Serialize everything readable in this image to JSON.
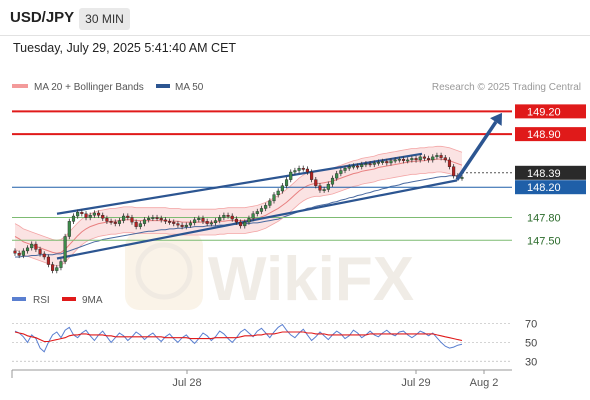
{
  "header": {
    "symbol": "USD/JPY",
    "timeframe": "30 MIN",
    "datetime": "Tuesday, July 29, 2025 5:41:40 AM CET"
  },
  "watermark": "WikiFX",
  "colors": {
    "candle_up": "#3d8a4a",
    "candle_down": "#b42222",
    "channel": "#2c5591",
    "resistance": "#e01a1a",
    "support": "#7dbb72",
    "pivot": "#1f5fa8",
    "last_price": "#2a2a2a",
    "rsi": "#5a7fd0",
    "rsi_ma": "#e01a1a",
    "bollinger": "#f3a6a6",
    "ma50": "#4a6aa0"
  },
  "chart_data": [
    {
      "type": "candlestick",
      "title": "USD/JPY 30 MIN",
      "legend": [
        {
          "name": "MA 20 + Bollinger Bands",
          "color": "#f39a9a"
        },
        {
          "name": "MA 50",
          "color": "#2c5591"
        }
      ],
      "credit": "Research © 2025 Trading Central",
      "ylim": [
        146.95,
        149.35
      ],
      "x_ticks": [
        "Jul 28",
        "Jul 29",
        "Aug 2"
      ],
      "levels": [
        {
          "value": 149.2,
          "label": "149.20",
          "kind": "resistance"
        },
        {
          "value": 148.9,
          "label": "148.90",
          "kind": "resistance"
        },
        {
          "value": 148.39,
          "label": "148.39",
          "kind": "last"
        },
        {
          "value": 148.2,
          "label": "148.20",
          "kind": "pivot"
        },
        {
          "value": 147.8,
          "label": "147.80",
          "kind": "support"
        },
        {
          "value": 147.5,
          "label": "147.50",
          "kind": "support"
        }
      ],
      "channel": {
        "upper": [
          [
            0.09,
            147.85
          ],
          [
            0.82,
            148.64
          ]
        ],
        "lower": [
          [
            0.09,
            147.26
          ],
          [
            0.89,
            148.29
          ]
        ]
      },
      "target_arrow": {
        "from": [
          0.89,
          148.3
        ],
        "to": [
          0.98,
          149.18
        ]
      },
      "closes": [
        147.33,
        147.3,
        147.36,
        147.4,
        147.45,
        147.38,
        147.32,
        147.28,
        147.18,
        147.1,
        147.14,
        147.22,
        147.55,
        147.75,
        147.82,
        147.87,
        147.85,
        147.8,
        147.83,
        147.86,
        147.83,
        147.79,
        147.75,
        147.74,
        147.72,
        147.76,
        147.82,
        147.8,
        147.74,
        147.68,
        147.72,
        147.77,
        147.79,
        147.8,
        147.79,
        147.77,
        147.75,
        147.74,
        147.72,
        147.7,
        147.68,
        147.7,
        147.73,
        147.77,
        147.79,
        147.75,
        147.72,
        147.73,
        147.76,
        147.8,
        147.83,
        147.82,
        147.78,
        147.74,
        147.69,
        147.74,
        147.79,
        147.85,
        147.88,
        147.92,
        147.96,
        148.02,
        148.1,
        148.15,
        148.22,
        148.3,
        148.4,
        148.42,
        148.45,
        148.44,
        148.4,
        148.3,
        148.22,
        148.16,
        148.17,
        148.24,
        148.32,
        148.38,
        148.42,
        148.45,
        148.47,
        148.48,
        148.47,
        148.5,
        148.51,
        148.5,
        148.52,
        148.53,
        148.54,
        148.52,
        148.55,
        148.56,
        148.57,
        148.55,
        148.56,
        148.58,
        148.56,
        148.6,
        148.58,
        148.56,
        148.6,
        148.62,
        148.59,
        148.56,
        148.47,
        148.35,
        148.32,
        148.33
      ],
      "ma20": [
        147.55,
        147.52,
        147.48,
        147.46,
        147.44,
        147.42,
        147.4,
        147.38,
        147.36,
        147.34,
        147.33,
        147.34,
        147.38,
        147.44,
        147.5,
        147.56,
        147.61,
        147.65,
        147.68,
        147.7,
        147.72,
        147.73,
        147.74,
        147.75,
        147.75,
        147.76,
        147.77,
        147.77,
        147.77,
        147.76,
        147.76,
        147.76,
        147.76,
        147.76,
        147.76,
        147.76,
        147.76,
        147.75,
        147.75,
        147.75,
        147.74,
        147.74,
        147.74,
        147.74,
        147.74,
        147.74,
        147.74,
        147.74,
        147.74,
        147.75,
        147.75,
        147.76,
        147.76,
        147.76,
        147.76,
        147.76,
        147.77,
        147.78,
        147.79,
        147.81,
        147.83,
        147.86,
        147.89,
        147.92,
        147.96,
        148.0,
        148.05,
        148.1,
        148.15,
        148.19,
        148.22,
        148.24,
        148.25,
        148.25,
        148.26,
        148.27,
        148.28,
        148.3,
        148.32,
        148.34,
        148.36,
        148.38,
        148.39,
        148.41,
        148.42,
        148.43,
        148.44,
        148.46,
        148.47,
        148.48,
        148.49,
        148.5,
        148.51,
        148.52,
        148.53,
        148.54,
        148.54,
        148.55,
        148.55,
        148.56,
        148.56,
        148.57,
        148.57,
        148.56,
        148.55,
        148.53,
        148.51,
        148.49
      ],
      "ma50": [
        147.28,
        147.28,
        147.29,
        147.29,
        147.3,
        147.3,
        147.31,
        147.31,
        147.31,
        147.31,
        147.32,
        147.32,
        147.34,
        147.36,
        147.38,
        147.4,
        147.42,
        147.44,
        147.46,
        147.48,
        147.49,
        147.51,
        147.52,
        147.53,
        147.54,
        147.55,
        147.56,
        147.57,
        147.58,
        147.59,
        147.6,
        147.61,
        147.62,
        147.62,
        147.63,
        147.64,
        147.64,
        147.65,
        147.65,
        147.66,
        147.66,
        147.67,
        147.67,
        147.68,
        147.68,
        147.68,
        147.69,
        147.69,
        147.69,
        147.7,
        147.7,
        147.71,
        147.71,
        147.71,
        147.72,
        147.72,
        147.72,
        147.73,
        147.73,
        147.74,
        147.75,
        147.76,
        147.77,
        147.78,
        147.8,
        147.82,
        147.84,
        147.86,
        147.88,
        147.9,
        147.92,
        147.93,
        147.95,
        147.96,
        147.97,
        147.98,
        148.0,
        148.01,
        148.03,
        148.04,
        148.06,
        148.07,
        148.09,
        148.1,
        148.12,
        148.13,
        148.15,
        148.16,
        148.18,
        148.19,
        148.21,
        148.22,
        148.23,
        148.25,
        148.26,
        148.27,
        148.28,
        148.29,
        148.3,
        148.31,
        148.32,
        148.33,
        148.34,
        148.34,
        148.35,
        148.35,
        148.35,
        148.35
      ],
      "band_width": 0.17
    },
    {
      "type": "line",
      "title": "RSI",
      "series": [
        {
          "name": "RSI",
          "color": "#5a7fd0"
        },
        {
          "name": "9MA",
          "color": "#e01a1a"
        }
      ],
      "ylim": [
        25,
        78
      ],
      "y_ticks": [
        70,
        50,
        30
      ],
      "rsi": [
        62,
        60,
        56,
        50,
        58,
        54,
        44,
        40,
        50,
        58,
        61,
        55,
        63,
        66,
        58,
        55,
        60,
        63,
        57,
        52,
        58,
        62,
        56,
        50,
        55,
        60,
        57,
        52,
        56,
        61,
        58,
        53,
        57,
        60,
        55,
        51,
        56,
        59,
        54,
        50,
        55,
        58,
        53,
        49,
        54,
        60,
        57,
        52,
        56,
        62,
        59,
        54,
        50,
        55,
        61,
        64,
        60,
        56,
        62,
        65,
        60,
        55,
        61,
        66,
        69,
        63,
        58,
        55,
        60,
        64,
        58,
        52,
        56,
        61,
        57,
        53,
        58,
        62,
        59,
        54,
        57,
        63,
        60,
        55,
        58,
        62,
        58,
        56,
        60,
        63,
        59,
        57,
        61,
        62,
        58,
        55,
        58,
        62,
        60,
        57,
        60,
        55,
        50,
        46,
        44,
        45,
        47,
        48
      ],
      "ma9": [
        61,
        60,
        59,
        57,
        56,
        55,
        53,
        51,
        51,
        52,
        53,
        54,
        55,
        57,
        58,
        58,
        59,
        59,
        58,
        58,
        58,
        58,
        57,
        57,
        56,
        56,
        56,
        56,
        56,
        56,
        56,
        56,
        56,
        56,
        56,
        56,
        55,
        55,
        55,
        55,
        55,
        55,
        54,
        54,
        54,
        54,
        54,
        54,
        55,
        55,
        55,
        55,
        55,
        55,
        56,
        57,
        57,
        57,
        58,
        58,
        59,
        59,
        59,
        60,
        61,
        61,
        61,
        61,
        61,
        61,
        60,
        60,
        59,
        59,
        59,
        58,
        58,
        58,
        58,
        58,
        58,
        58,
        58,
        58,
        58,
        59,
        59,
        59,
        59,
        59,
        59,
        59,
        59,
        59,
        59,
        59,
        59,
        59,
        59,
        59,
        59,
        58,
        57,
        56,
        55,
        54,
        53,
        52
      ]
    }
  ]
}
